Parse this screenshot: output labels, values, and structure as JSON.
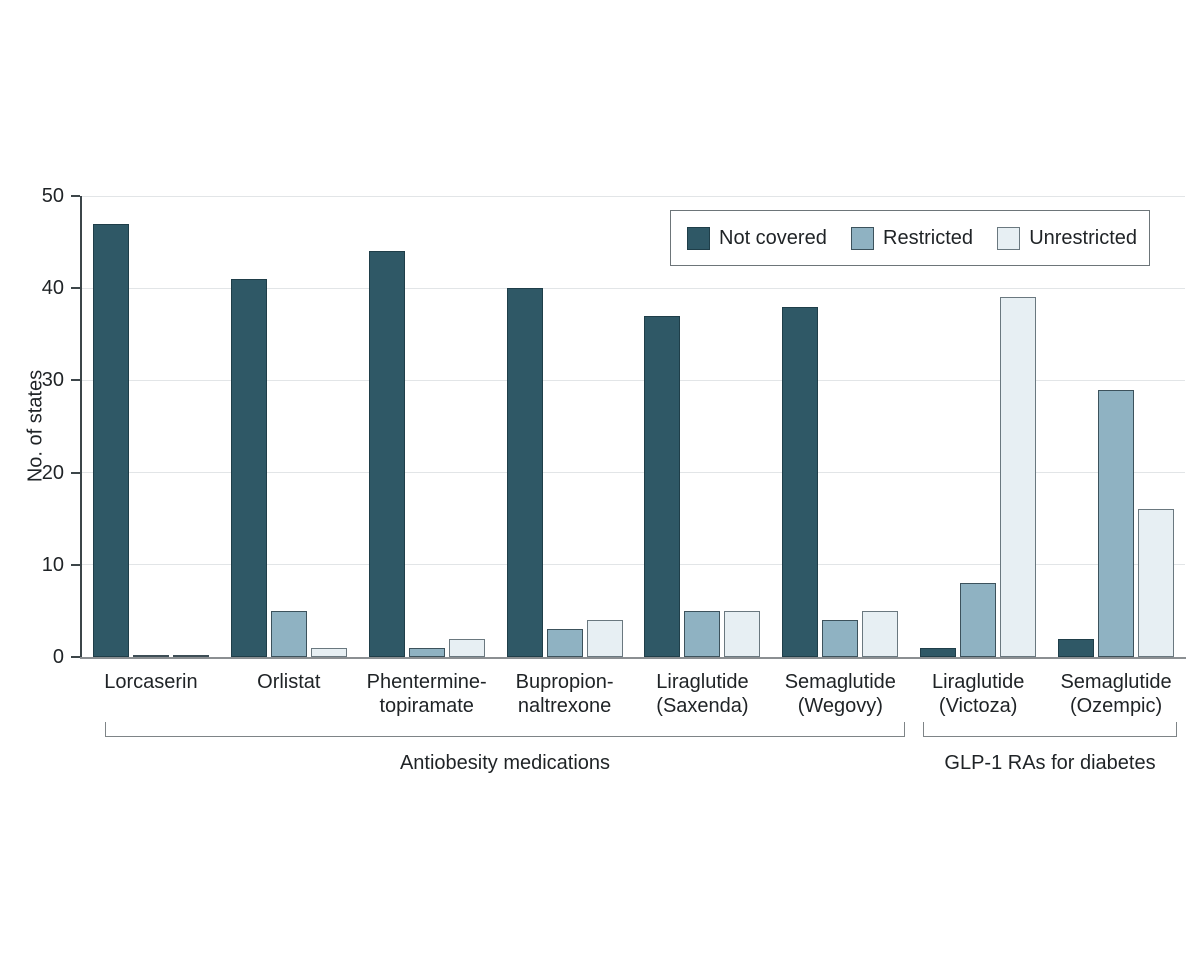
{
  "chart_data": {
    "type": "bar",
    "title": "",
    "xlabel": "",
    "ylabel": "No. of states",
    "ylim": [
      0,
      50
    ],
    "yticks": [
      0,
      10,
      20,
      30,
      40,
      50
    ],
    "grid": "horizontal",
    "legend_position": "top-right-inside",
    "categories": [
      "Lorcaserin",
      "Orlistat",
      "Phentermine-topiramate",
      "Bupropion-naltrexone",
      "Liraglutide (Saxenda)",
      "Semaglutide (Wegovy)",
      "Liraglutide (Victoza)",
      "Semaglutide (Ozempic)"
    ],
    "category_label_lines": [
      [
        "Lorcaserin"
      ],
      [
        "Orlistat"
      ],
      [
        "Phentermine-",
        "topiramate"
      ],
      [
        "Bupropion-",
        "naltrexone"
      ],
      [
        "Liraglutide",
        "(Saxenda)"
      ],
      [
        "Semaglutide",
        "(Wegovy)"
      ],
      [
        "Liraglutide",
        "(Victoza)"
      ],
      [
        "Semaglutide",
        "(Ozempic)"
      ]
    ],
    "series": [
      {
        "name": "Not covered",
        "fill": "#2F5866",
        "stroke": "#1F3E49",
        "values": [
          47,
          41,
          44,
          40,
          37,
          38,
          1,
          2
        ]
      },
      {
        "name": "Restricted",
        "fill": "#8FB2C2",
        "stroke": "#3C525C",
        "values": [
          0,
          5,
          1,
          3,
          5,
          4,
          8,
          29
        ]
      },
      {
        "name": "Unrestricted",
        "fill": "#E7EFF3",
        "stroke": "#6A787F",
        "values": [
          0,
          1,
          2,
          4,
          5,
          5,
          39,
          16
        ]
      }
    ],
    "zero_bar_line_color": "#3E4E56",
    "group_brackets": [
      {
        "label": "Antiobesity medications",
        "from_category": 0,
        "to_category": 5
      },
      {
        "label": "GLP-1 RAs for diabetes",
        "from_category": 6,
        "to_category": 7
      }
    ]
  }
}
